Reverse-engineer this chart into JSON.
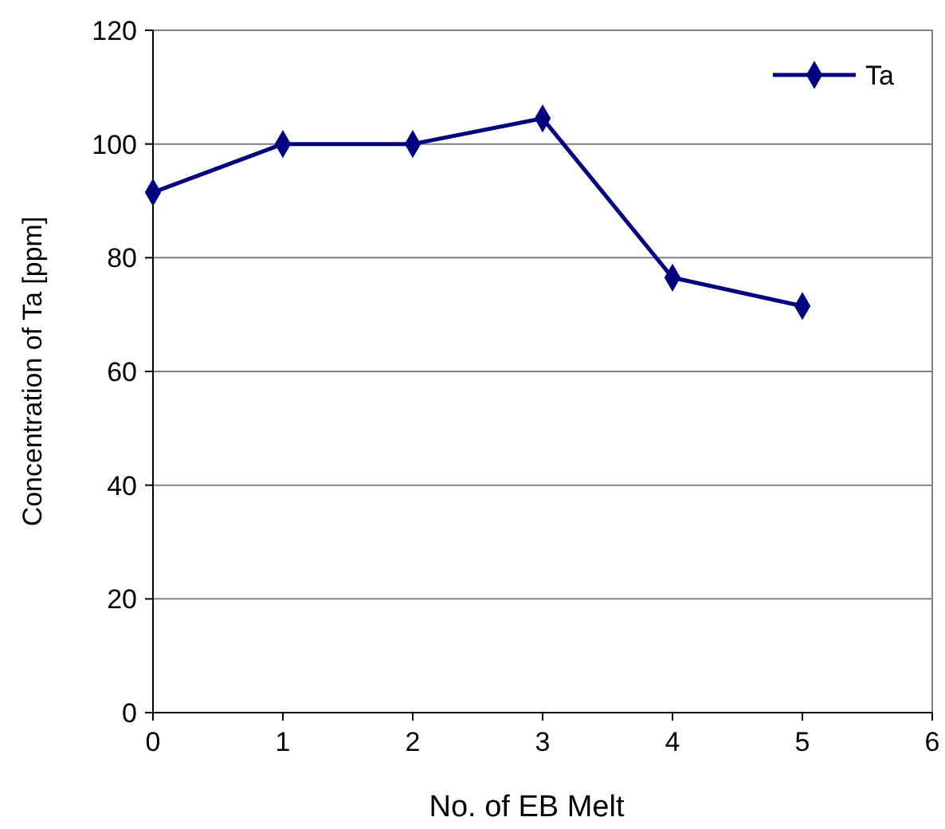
{
  "chart_data": {
    "type": "line",
    "xlabel": "No. of EB Melt",
    "ylabel": "Concentration of Ta [ppm]",
    "x": [
      0,
      1,
      2,
      3,
      4,
      5
    ],
    "series": [
      {
        "name": "Ta",
        "color": "#000080",
        "values": [
          91.5,
          100,
          100,
          104.5,
          76.5,
          71.5
        ]
      }
    ],
    "xlim": [
      0,
      6
    ],
    "xticks": [
      0,
      1,
      2,
      3,
      4,
      5,
      6
    ],
    "ylim": [
      0,
      120
    ],
    "yticks": [
      0,
      20,
      40,
      60,
      80,
      100,
      120
    ],
    "grid": "y",
    "legend": "top right",
    "marker": "diamond",
    "line_style": "solid"
  }
}
